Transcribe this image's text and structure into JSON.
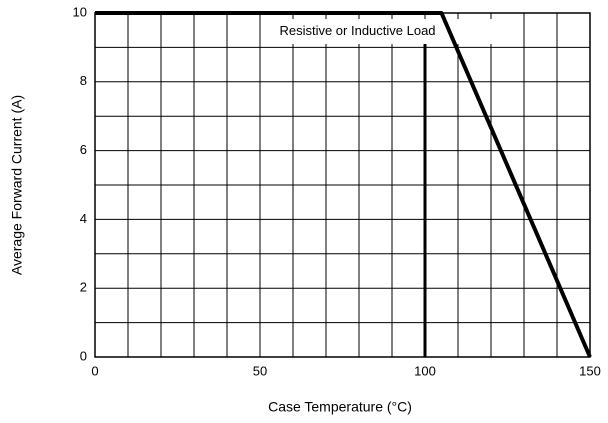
{
  "chart_data": {
    "type": "line",
    "xlabel": "Case Temperature (°C)",
    "ylabel": "Average Forward Current (A)",
    "x": [
      0,
      105,
      150
    ],
    "series": [
      {
        "color": "#000000",
        "values": [
          10,
          10,
          0
        ]
      }
    ],
    "xlim": [
      0,
      150
    ],
    "ylim": [
      0,
      10
    ],
    "xticks": [
      0,
      50,
      100,
      150
    ],
    "yticks": [
      0,
      2,
      4,
      6,
      8,
      10
    ],
    "xgrid": [
      0,
      10,
      20,
      30,
      40,
      50,
      60,
      70,
      80,
      90,
      100,
      110,
      120,
      130,
      140,
      150
    ],
    "ygrid": [
      0,
      1,
      2,
      3,
      4,
      5,
      6,
      7,
      8,
      9,
      10
    ],
    "grid": true,
    "annotation": {
      "text": "Resistive or Inductive Load",
      "line_x": 100,
      "line_top": 9.1
    }
  }
}
